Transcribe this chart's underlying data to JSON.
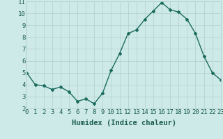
{
  "x": [
    0,
    1,
    2,
    3,
    4,
    5,
    6,
    7,
    8,
    9,
    10,
    11,
    12,
    13,
    14,
    15,
    16,
    17,
    18,
    19,
    20,
    21,
    22,
    23
  ],
  "y": [
    5.0,
    4.0,
    3.9,
    3.6,
    3.8,
    3.4,
    2.6,
    2.8,
    2.4,
    3.3,
    5.2,
    6.6,
    8.3,
    8.6,
    9.5,
    10.2,
    10.9,
    10.3,
    10.1,
    9.5,
    8.3,
    6.4,
    5.0,
    4.4
  ],
  "xlabel": "Humidex (Indice chaleur)",
  "xlim": [
    0,
    23
  ],
  "ylim": [
    2,
    11
  ],
  "yticks": [
    2,
    3,
    4,
    5,
    6,
    7,
    8,
    9,
    10,
    11
  ],
  "xticks": [
    0,
    1,
    2,
    3,
    4,
    5,
    6,
    7,
    8,
    9,
    10,
    11,
    12,
    13,
    14,
    15,
    16,
    17,
    18,
    19,
    20,
    21,
    22,
    23
  ],
  "line_color": "#1a6b5e",
  "marker": "D",
  "marker_size": 2.0,
  "bg_color": "#ceeae8",
  "grid_color": "#b0cece",
  "tick_label_color": "#1a5c50",
  "xlabel_fontsize": 7.5,
  "tick_fontsize": 6.5,
  "line_width": 1.0
}
